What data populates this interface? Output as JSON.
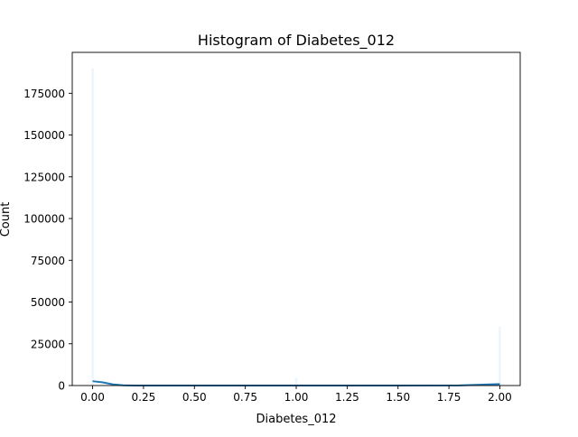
{
  "chart_data": {
    "type": "bar",
    "title": "Histogram of Diabetes_012",
    "xlabel": "Diabetes_012",
    "ylabel": "Count",
    "xlim": [
      -0.1,
      2.1
    ],
    "ylim": [
      0,
      199500
    ],
    "x_ticks": [
      0.0,
      0.25,
      0.5,
      0.75,
      1.0,
      1.25,
      1.5,
      1.75,
      2.0
    ],
    "x_tick_labels": [
      "0.00",
      "0.25",
      "0.50",
      "0.75",
      "1.00",
      "1.25",
      "1.50",
      "1.75",
      "2.00"
    ],
    "y_ticks": [
      0,
      25000,
      50000,
      75000,
      100000,
      125000,
      150000,
      175000
    ],
    "y_tick_labels": [
      "0",
      "25000",
      "50000",
      "75000",
      "100000",
      "125000",
      "150000",
      "175000"
    ],
    "bins": [
      {
        "x": 0.0,
        "count": 190000
      },
      {
        "x": 1.0,
        "count": 4600
      },
      {
        "x": 2.0,
        "count": 35300
      }
    ],
    "kde": {
      "x": [
        0.0,
        0.05,
        0.1,
        0.15,
        0.2,
        0.3,
        0.5,
        1.0,
        1.5,
        1.8,
        1.9,
        2.0
      ],
      "y": [
        2600,
        1900,
        700,
        150,
        0,
        0,
        0,
        0,
        0,
        100,
        450,
        850
      ]
    },
    "grid": false,
    "colors": {
      "bar_fill": "#eaf2fb",
      "bar_edge": "#f3f7fc",
      "kde_line": "#1f77b4",
      "axis": "#000000"
    }
  }
}
